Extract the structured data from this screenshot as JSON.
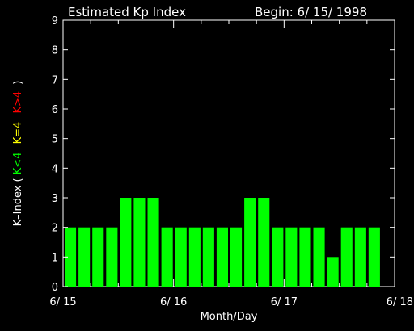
{
  "chart_data": {
    "type": "bar",
    "title": "Estimated Kp Index",
    "begin_label": "Begin: 6/ 15/ 1998",
    "xlabel": "Month/Day",
    "ylabel": {
      "prefix": "K–Index (",
      "green": "K<4",
      "yellow": "K=4",
      "red": "K>4",
      "suffix": ")"
    },
    "xlim": [
      0,
      72
    ],
    "ylim": [
      0,
      9
    ],
    "yticks": [
      0,
      1,
      2,
      3,
      4,
      5,
      6,
      7,
      8,
      9
    ],
    "xticks": [
      {
        "hour": 0,
        "label": "6/ 15"
      },
      {
        "hour": 24,
        "label": "6/ 16"
      },
      {
        "hour": 48,
        "label": "6/ 17"
      },
      {
        "hour": 72,
        "label": "6/ 18"
      }
    ],
    "bar_width_hours": 3,
    "x": [
      0,
      3,
      6,
      9,
      12,
      15,
      18,
      21,
      24,
      27,
      30,
      33,
      36,
      39,
      42,
      45,
      48,
      51,
      54,
      57,
      60,
      63,
      66
    ],
    "values": [
      2,
      2,
      2,
      2,
      3,
      3,
      3,
      2,
      2,
      2,
      2,
      2,
      2,
      3,
      3,
      2,
      2,
      2,
      2,
      1,
      2,
      2,
      2
    ],
    "colors": {
      "below": "#00ff00",
      "equal": "#ffff00",
      "above": "#ff0000",
      "axes": "#ffffff",
      "background": "#000000"
    }
  }
}
